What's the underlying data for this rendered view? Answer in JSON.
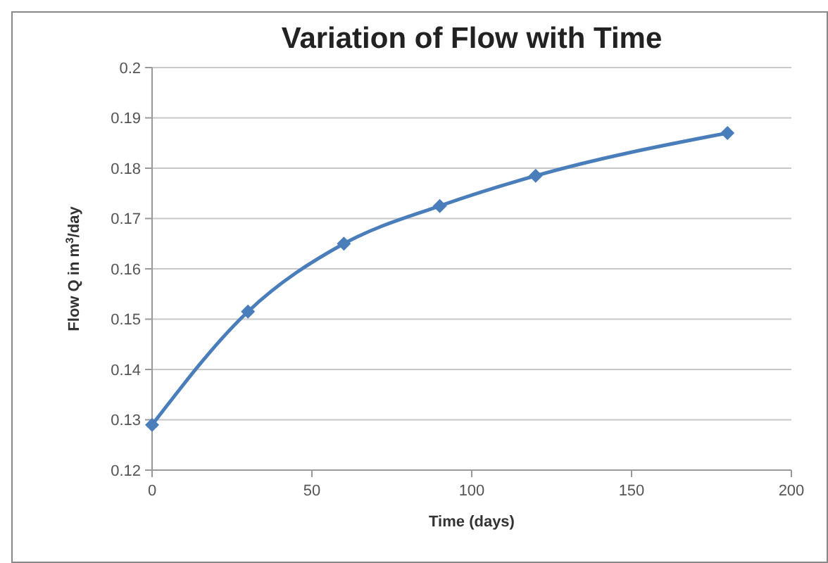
{
  "chart_data": {
    "type": "line",
    "title": "Variation of Flow with Time",
    "xlabel": "Time (days)",
    "ylabel": "Flow Q in m$^{3}$/day",
    "x": [
      0,
      30,
      60,
      90,
      120,
      180
    ],
    "series": [
      {
        "color": "#4a7ebb",
        "values": [
          0.129,
          0.1515,
          0.165,
          0.1725,
          0.1785,
          0.187
        ]
      }
    ],
    "xlim": [
      0,
      200
    ],
    "xticks": [
      0,
      50,
      100,
      150,
      200
    ],
    "ylim": [
      0.12,
      0.2
    ],
    "yticks": [
      0.12,
      0.13,
      0.14,
      0.15,
      0.16,
      0.17,
      0.18,
      0.19,
      0.2
    ],
    "grid": "y",
    "marker": "diamond",
    "line_style": "solid"
  }
}
